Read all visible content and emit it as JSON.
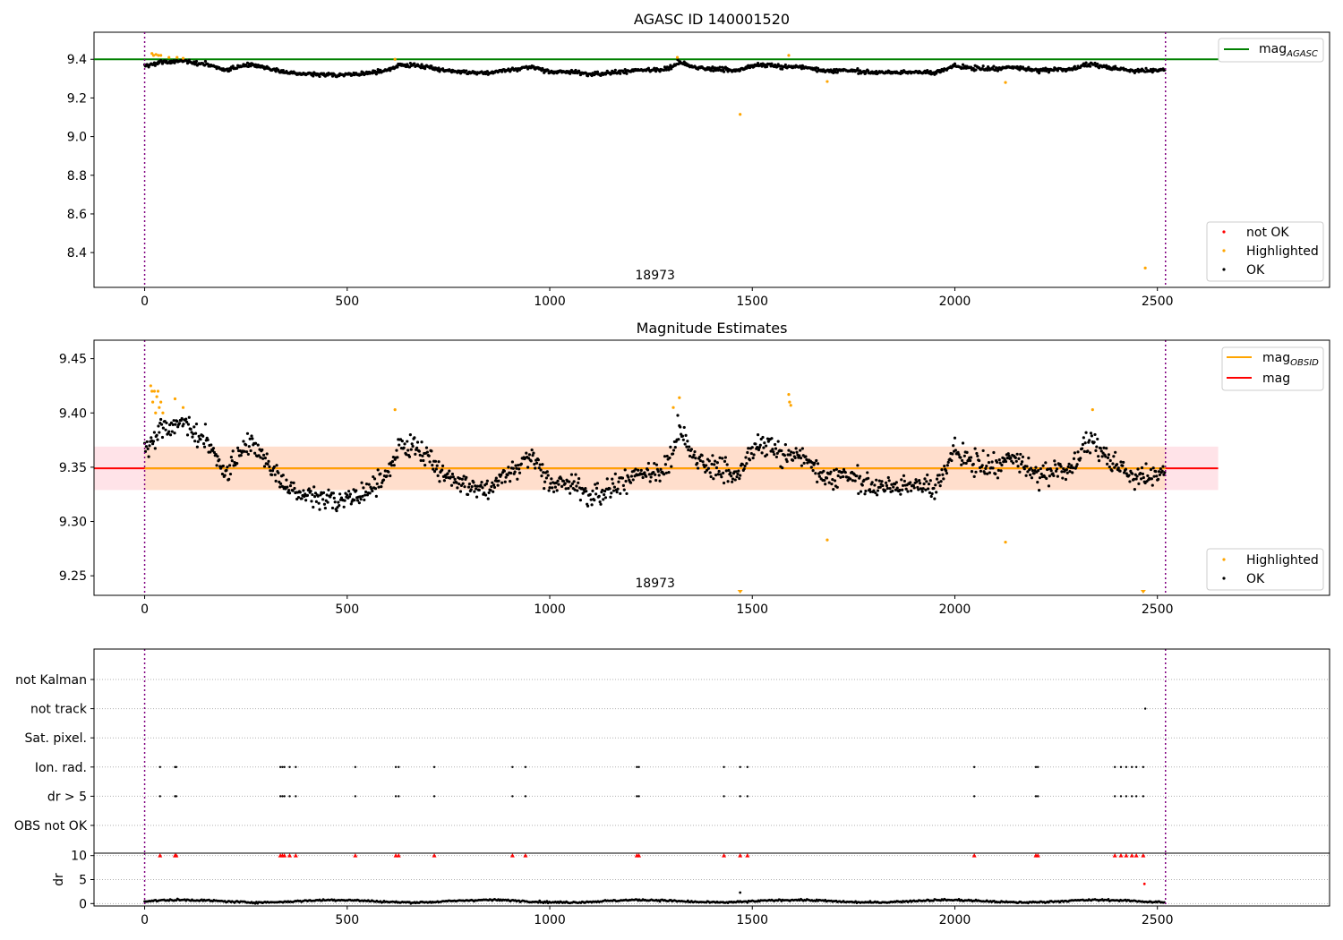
{
  "figure": {
    "title": "AGASC ID 140001520"
  },
  "colors": {
    "ok": "#000000",
    "highlighted": "#ffa500",
    "not_ok": "#ff0000",
    "mag_agasc": "#008000",
    "mag_obsid": "#ffa500",
    "mag": "#ff0000",
    "obs_boundary": "#800080",
    "band_mag": "#ffc0cb",
    "band_obsid": "#ffdab9"
  },
  "chart_data": [
    {
      "type": "scatter",
      "title": "",
      "xlim": [
        -125,
        2925
      ],
      "ylim": [
        8.22,
        9.54
      ],
      "x_ticks": [
        0,
        500,
        1000,
        1500,
        2000,
        2500
      ],
      "y_ticks": [
        8.4,
        8.6,
        8.8,
        9.0,
        9.2,
        9.4
      ],
      "y_tick_labels": [
        "8.4",
        "8.6",
        "8.8",
        "9.0",
        "9.2",
        "9.4"
      ],
      "hlines": [
        {
          "name": "mag_AGASC",
          "y": 9.4,
          "xmin": -125,
          "xmax": 2650
        }
      ],
      "obs_boundaries": [
        0,
        2520
      ],
      "obsid_label": "18973",
      "n_points": 2520,
      "ok_range": [
        9.3,
        9.4
      ],
      "highlighted_points": [
        [
          18,
          9.43
        ],
        [
          22,
          9.42
        ],
        [
          28,
          9.425
        ],
        [
          34,
          9.42
        ],
        [
          40,
          9.42
        ],
        [
          60,
          9.41
        ],
        [
          80,
          9.41
        ],
        [
          95,
          9.405
        ],
        [
          618,
          9.4
        ],
        [
          1315,
          9.41
        ],
        [
          1470,
          9.115
        ],
        [
          1590,
          9.42
        ],
        [
          1685,
          9.285
        ],
        [
          2125,
          9.28
        ],
        [
          2470,
          8.32
        ]
      ],
      "legends": [
        {
          "entries": [
            "mag_AGASC"
          ],
          "position": "upper right"
        },
        {
          "entries": [
            "not OK",
            "Highlighted",
            "OK"
          ],
          "position": "lower right"
        }
      ]
    },
    {
      "type": "scatter",
      "title": "Magnitude Estimates",
      "xlim": [
        -125,
        2925
      ],
      "ylim": [
        9.232,
        9.467
      ],
      "x_ticks": [
        0,
        500,
        1000,
        1500,
        2000,
        2500
      ],
      "y_ticks": [
        9.25,
        9.3,
        9.35,
        9.4,
        9.45
      ],
      "y_tick_labels": [
        "9.25",
        "9.30",
        "9.35",
        "9.40",
        "9.45"
      ],
      "hlines": [
        {
          "name": "mag",
          "y": 9.349,
          "xmin": -125,
          "xmax": 2650
        },
        {
          "name": "mag_OBSID",
          "y": 9.349,
          "xmin": 0,
          "xmax": 2520
        }
      ],
      "bands": [
        {
          "name": "mag",
          "y": [
            9.329,
            9.369
          ],
          "xmin": -125,
          "xmax": 2650
        },
        {
          "name": "mag_OBSID",
          "y": [
            9.329,
            9.369
          ],
          "xmin": 0,
          "xmax": 2520
        }
      ],
      "obs_boundaries": [
        0,
        2520
      ],
      "obsid_label": "18973",
      "n_points": 2520,
      "ok_range": [
        9.3,
        9.4
      ],
      "highlighted_points": [
        [
          15,
          9.425
        ],
        [
          18,
          9.42
        ],
        [
          20,
          9.41
        ],
        [
          24,
          9.42
        ],
        [
          27,
          9.4
        ],
        [
          30,
          9.415
        ],
        [
          33,
          9.42
        ],
        [
          36,
          9.405
        ],
        [
          40,
          9.41
        ],
        [
          45,
          9.4
        ],
        [
          75,
          9.413
        ],
        [
          95,
          9.405
        ],
        [
          618,
          9.403
        ],
        [
          1305,
          9.405
        ],
        [
          1320,
          9.414
        ],
        [
          1590,
          9.417
        ],
        [
          1592,
          9.41
        ],
        [
          1595,
          9.407
        ],
        [
          1685,
          9.283
        ],
        [
          2125,
          9.281
        ],
        [
          2340,
          9.403
        ]
      ],
      "clipped_points": [
        1470,
        2465
      ],
      "legends": [
        {
          "entries": [
            "mag_OBSID",
            "mag"
          ],
          "position": "upper right"
        },
        {
          "entries": [
            "Highlighted",
            "OK"
          ],
          "position": "lower right"
        }
      ]
    },
    {
      "type": "scatter",
      "title": "",
      "xlim": [
        -125,
        2925
      ],
      "categories": [
        "not Kalman",
        "not track",
        "Sat. pixel.",
        "Ion. rad.",
        "dr > 5",
        "OBS not OK"
      ],
      "flag_points": {
        "not track": [
          2470
        ],
        "Ion. rad.": [
          38,
          75,
          78,
          335,
          340,
          345,
          358,
          373,
          520,
          620,
          627,
          715,
          908,
          940,
          1215,
          1220,
          1430,
          1470,
          1488,
          2048,
          2200,
          2205,
          2395,
          2410,
          2423,
          2437,
          2448,
          2465
        ],
        "dr > 5": [
          38,
          75,
          78,
          335,
          340,
          345,
          358,
          373,
          520,
          620,
          627,
          715,
          908,
          940,
          1215,
          1220,
          1430,
          1470,
          1488,
          2048,
          2200,
          2205,
          2395,
          2410,
          2423,
          2437,
          2448,
          2465
        ]
      },
      "obs_boundaries": [
        0,
        2520
      ]
    },
    {
      "type": "scatter",
      "title": "",
      "xlim": [
        -125,
        2925
      ],
      "ylim": [
        -0.5,
        10.5
      ],
      "ylabel": "dr",
      "x_ticks": [
        0,
        500,
        1000,
        1500,
        2000,
        2500
      ],
      "y_ticks": [
        0,
        5,
        10
      ],
      "y_tick_labels": [
        "0",
        "5",
        "10"
      ],
      "dr_outliers": [
        [
          1470,
          2.3
        ],
        [
          2468,
          4.1
        ]
      ],
      "dr_clipped": [
        38,
        75,
        78,
        335,
        340,
        345,
        358,
        373,
        520,
        620,
        627,
        715,
        908,
        940,
        1215,
        1220,
        1430,
        1470,
        1488,
        2048,
        2200,
        2205,
        2395,
        2410,
        2423,
        2437,
        2448,
        2465
      ],
      "obs_boundaries": [
        0,
        2520
      ]
    }
  ],
  "legend": {
    "mag_agasc": {
      "base": "mag",
      "sub": "AGASC"
    },
    "mag_obsid": {
      "base": "mag",
      "sub": "OBSID"
    },
    "mag": "mag",
    "not_ok": "not OK",
    "highlighted": "Highlighted",
    "ok": "OK"
  }
}
